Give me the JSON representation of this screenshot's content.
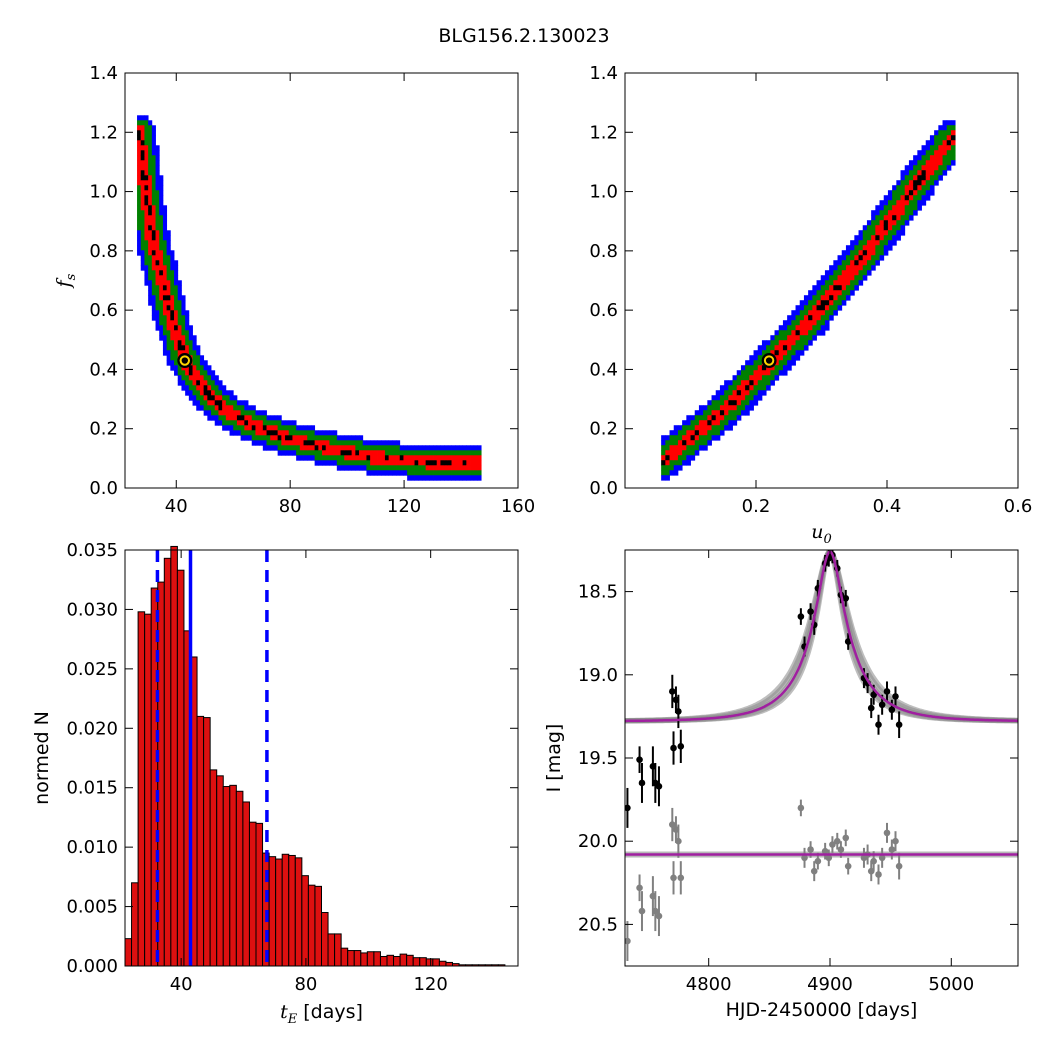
{
  "figure": {
    "title": "BLG156.2.130023"
  },
  "colors": {
    "outer": "#0000ff",
    "mid": "#008000",
    "inner": "#ff0000",
    "core": "#000000",
    "best_fit_marker": "#ffd700",
    "hist_bar": "#dd1010",
    "median_line": "#0000ff",
    "model_line": "#a020a0",
    "data_dark": "#000000",
    "data_grey": "#808080"
  },
  "chart_data": [
    {
      "id": "fs_vs_tE",
      "type": "scatter",
      "xlabel": "",
      "ylabel": "f_s",
      "xlim": [
        22,
        160
      ],
      "ylim": [
        0.0,
        1.4
      ],
      "xticks": [
        "40",
        "80",
        "120",
        "160"
      ],
      "yticks": [
        "0.0",
        "0.2",
        "0.4",
        "0.6",
        "0.8",
        "1.0",
        "1.2",
        "1.4"
      ],
      "grid": false,
      "regions": "confidence contours (blue > green > red > black)",
      "ridge_points": [
        [
          27,
          1.2
        ],
        [
          28,
          1.1
        ],
        [
          29,
          1.02
        ],
        [
          30,
          0.95
        ],
        [
          31,
          0.88
        ],
        [
          32,
          0.82
        ],
        [
          34,
          0.75
        ],
        [
          36,
          0.66
        ],
        [
          38,
          0.58
        ],
        [
          40,
          0.52
        ],
        [
          42,
          0.46
        ],
        [
          44,
          0.42
        ],
        [
          47,
          0.37
        ],
        [
          50,
          0.33
        ],
        [
          54,
          0.29
        ],
        [
          58,
          0.26
        ],
        [
          63,
          0.23
        ],
        [
          70,
          0.2
        ],
        [
          78,
          0.17
        ],
        [
          88,
          0.145
        ],
        [
          100,
          0.12
        ],
        [
          112,
          0.1
        ],
        [
          124,
          0.09
        ],
        [
          136,
          0.085
        ],
        [
          146,
          0.085
        ]
      ],
      "best_fit": [
        43,
        0.43
      ]
    },
    {
      "id": "fs_vs_u0",
      "type": "scatter",
      "xlabel": "u_0",
      "ylabel": "",
      "xlim": [
        0.0,
        0.6
      ],
      "ylim": [
        0.0,
        1.4
      ],
      "xticks": [
        "0.2",
        "0.4",
        "0.6"
      ],
      "yticks": [
        "0.0",
        "0.2",
        "0.4",
        "0.6",
        "0.8",
        "1.0",
        "1.2",
        "1.4"
      ],
      "grid": false,
      "ridge_points": [
        [
          0.057,
          0.09
        ],
        [
          0.08,
          0.13
        ],
        [
          0.1,
          0.17
        ],
        [
          0.13,
          0.22
        ],
        [
          0.16,
          0.28
        ],
        [
          0.19,
          0.35
        ],
        [
          0.22,
          0.42
        ],
        [
          0.25,
          0.49
        ],
        [
          0.28,
          0.56
        ],
        [
          0.31,
          0.64
        ],
        [
          0.34,
          0.72
        ],
        [
          0.37,
          0.8
        ],
        [
          0.4,
          0.89
        ],
        [
          0.43,
          0.98
        ],
        [
          0.46,
          1.07
        ],
        [
          0.5,
          1.18
        ]
      ],
      "best_fit": [
        0.22,
        0.43
      ]
    },
    {
      "id": "tE_histogram",
      "type": "bar",
      "xlabel": "t_E [days]",
      "ylabel": "normed N",
      "xlim": [
        22,
        148
      ],
      "ylim": [
        0.0,
        0.035
      ],
      "xticks": [
        "40",
        "80",
        "120"
      ],
      "yticks": [
        "0.000",
        "0.005",
        "0.010",
        "0.015",
        "0.020",
        "0.025",
        "0.030",
        "0.035"
      ],
      "bin_start": 22,
      "bin_width": 2.1,
      "values": [
        0.0023,
        0.007,
        0.0298,
        0.0296,
        0.0318,
        0.0323,
        0.0343,
        0.0353,
        0.0333,
        0.0282,
        0.026,
        0.021,
        0.0209,
        0.0165,
        0.016,
        0.0151,
        0.0152,
        0.0147,
        0.0138,
        0.0121,
        0.012,
        0.0095,
        0.0092,
        0.009,
        0.0094,
        0.0093,
        0.0091,
        0.0076,
        0.0068,
        0.0067,
        0.0045,
        0.0027,
        0.0027,
        0.0015,
        0.0013,
        0.0013,
        0.0011,
        0.0012,
        0.0012,
        0.0008,
        0.0009,
        0.0008,
        0.001,
        0.0009,
        0.0007,
        0.0007,
        0.0006,
        0.0006,
        0.0004,
        0.0003,
        0.0002,
        0.0001,
        0.0001,
        0.0001,
        0.0001,
        0.0001,
        0.0001,
        0.0001
      ],
      "median": 43.0,
      "interval": [
        32.4,
        67.5
      ]
    },
    {
      "id": "lightcurve",
      "type": "line",
      "xlabel": "HJD-2450000 [days]",
      "ylabel": "I [mag]",
      "xlim": [
        4731,
        5055
      ],
      "ylim": [
        20.75,
        18.25
      ],
      "xticks": [
        "4800",
        "4900",
        "5000"
      ],
      "yticks": [
        "18.5",
        "19.0",
        "19.5",
        "20.0",
        "20.5"
      ],
      "model": {
        "t0": 4900,
        "tE": 43,
        "u0": 0.22,
        "fs": 0.43,
        "baseline": 19.28
      },
      "series": [
        {
          "points": [
            [
              4733,
              19.8,
              0.12
            ],
            [
              4743,
              19.51,
              0.08
            ],
            [
              4745,
              19.65,
              0.12
            ],
            [
              4754,
              19.55,
              0.12
            ],
            [
              4756,
              19.65,
              0.12
            ],
            [
              4759,
              19.67,
              0.12
            ],
            [
              4770,
              19.1,
              0.1
            ],
            [
              4771,
              19.44,
              0.1
            ],
            [
              4773,
              19.15,
              0.08
            ],
            [
              4775,
              19.22,
              0.1
            ],
            [
              4777,
              19.43,
              0.1
            ],
            [
              4876,
              18.65,
              0.05
            ],
            [
              4879,
              18.83,
              0.06
            ],
            [
              4884,
              18.62,
              0.05
            ],
            [
              4887,
              18.7,
              0.06
            ],
            [
              4890,
              18.48,
              0.05
            ],
            [
              4896,
              18.33,
              0.05
            ],
            [
              4899,
              18.3,
              0.05
            ],
            [
              4902,
              18.28,
              0.05
            ],
            [
              4906,
              18.36,
              0.05
            ],
            [
              4909,
              18.52,
              0.05
            ],
            [
              4913,
              18.54,
              0.05
            ],
            [
              4915,
              18.8,
              0.05
            ],
            [
              4928,
              19.02,
              0.06
            ],
            [
              4931,
              19.05,
              0.06
            ],
            [
              4934,
              19.2,
              0.06
            ],
            [
              4936,
              19.12,
              0.06
            ],
            [
              4940,
              19.3,
              0.06
            ],
            [
              4943,
              19.18,
              0.06
            ],
            [
              4947,
              19.1,
              0.06
            ],
            [
              4951,
              19.21,
              0.06
            ],
            [
              4954,
              19.13,
              0.06
            ],
            [
              4957,
              19.3,
              0.08
            ]
          ]
        },
        {
          "baseline": 20.08,
          "points": [
            [
              4733,
              20.6,
              0.12
            ],
            [
              4743,
              20.28,
              0.08
            ],
            [
              4745,
              20.42,
              0.12
            ],
            [
              4754,
              20.33,
              0.12
            ],
            [
              4756,
              20.42,
              0.12
            ],
            [
              4759,
              20.45,
              0.12
            ],
            [
              4770,
              19.9,
              0.1
            ],
            [
              4771,
              20.22,
              0.1
            ],
            [
              4773,
              19.93,
              0.08
            ],
            [
              4775,
              20.0,
              0.1
            ],
            [
              4777,
              20.22,
              0.1
            ],
            [
              4876,
              19.8,
              0.05
            ],
            [
              4879,
              20.1,
              0.06
            ],
            [
              4884,
              20.05,
              0.05
            ],
            [
              4887,
              20.18,
              0.06
            ],
            [
              4890,
              20.12,
              0.05
            ],
            [
              4896,
              20.06,
              0.05
            ],
            [
              4899,
              20.1,
              0.05
            ],
            [
              4902,
              20.02,
              0.05
            ],
            [
              4906,
              20.0,
              0.05
            ],
            [
              4909,
              20.05,
              0.05
            ],
            [
              4913,
              19.98,
              0.05
            ],
            [
              4915,
              20.15,
              0.05
            ],
            [
              4928,
              20.1,
              0.06
            ],
            [
              4931,
              20.08,
              0.06
            ],
            [
              4934,
              20.18,
              0.06
            ],
            [
              4936,
              20.12,
              0.06
            ],
            [
              4940,
              20.2,
              0.06
            ],
            [
              4943,
              20.1,
              0.06
            ],
            [
              4947,
              19.95,
              0.06
            ],
            [
              4951,
              20.05,
              0.06
            ],
            [
              4954,
              20.0,
              0.06
            ],
            [
              4957,
              20.15,
              0.08
            ]
          ]
        }
      ]
    }
  ]
}
